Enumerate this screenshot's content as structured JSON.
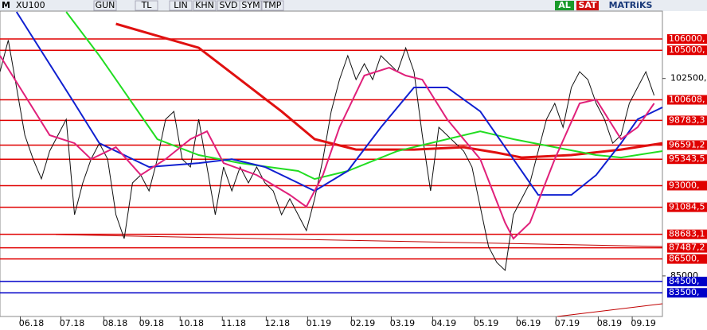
{
  "toolbar": {
    "logo": "M",
    "symbol": "XU100",
    "buttons": [
      "GUN",
      "TL",
      "LIN",
      "KHN",
      "SVD",
      "SYM",
      "TMP"
    ],
    "buy": "AL",
    "sell": "SAT",
    "brand": "MATRiKS"
  },
  "chart_data": {
    "type": "line",
    "xlim": [
      0,
      80
    ],
    "xticks": [
      {
        "value": 3.8,
        "label": "06.18"
      },
      {
        "value": 8.7,
        "label": "07.18"
      },
      {
        "value": 13.9,
        "label": "08.18"
      },
      {
        "value": 18.3,
        "label": "09.18"
      },
      {
        "value": 23.1,
        "label": "10.18"
      },
      {
        "value": 28.2,
        "label": "11.18"
      },
      {
        "value": 33.5,
        "label": "12.18"
      },
      {
        "value": 38.5,
        "label": "01.19"
      },
      {
        "value": 43.8,
        "label": "02.19"
      },
      {
        "value": 48.6,
        "label": "03.19"
      },
      {
        "value": 53.6,
        "label": "04.19"
      },
      {
        "value": 58.7,
        "label": "05.19"
      },
      {
        "value": 63.8,
        "label": "06.19"
      },
      {
        "value": 68.5,
        "label": "07.19"
      },
      {
        "value": 73.6,
        "label": "08.19"
      },
      {
        "value": 77.7,
        "label": "09.19"
      }
    ],
    "ylim": [
      81400,
      108470
    ],
    "yticks": [
      {
        "value": 102500,
        "label": "102500,"
      },
      {
        "value": 85000,
        "label": "85000,"
      }
    ],
    "levels": [
      {
        "value": 106000,
        "label": "106000,",
        "color": "#e00000"
      },
      {
        "value": 105000,
        "label": "105000,",
        "color": "#e00000"
      },
      {
        "value": 100608,
        "label": "100608,",
        "color": "#e00000"
      },
      {
        "value": 98783.3,
        "label": "98783,3",
        "color": "#e00000"
      },
      {
        "value": 96591.2,
        "label": "96591,2",
        "color": "#e00000"
      },
      {
        "value": 95343.5,
        "label": "95343,5",
        "color": "#e00000"
      },
      {
        "value": 93000,
        "label": "93000,",
        "color": "#e00000"
      },
      {
        "value": 91084.5,
        "label": "91084,5",
        "color": "#e00000"
      },
      {
        "value": 88683.1,
        "label": "88683,1",
        "color": "#e00000"
      },
      {
        "value": 87487.2,
        "label": "87487,2",
        "color": "#e00000"
      },
      {
        "value": 86500,
        "label": "86500,",
        "color": "#e00000"
      },
      {
        "value": 84500,
        "label": "84500,",
        "color": "#0000c8"
      },
      {
        "value": 83500,
        "label": "83500,",
        "color": "#0000c8"
      }
    ],
    "price": {
      "color": "#111111",
      "x": [
        0,
        1,
        2,
        3,
        4,
        5,
        6,
        7,
        8,
        9,
        10,
        11,
        12,
        13,
        14,
        15,
        16,
        17,
        18,
        19,
        20,
        21,
        22,
        23,
        24,
        25,
        26,
        27,
        28,
        29,
        30,
        31,
        32,
        33,
        34,
        35,
        36,
        37,
        38,
        39,
        40,
        41,
        42,
        43,
        44,
        45,
        46,
        47,
        48,
        49,
        50,
        51,
        52,
        53,
        54,
        55,
        56,
        57,
        58,
        59,
        60,
        61,
        62,
        63,
        64,
        65,
        66,
        67,
        68,
        69,
        70,
        71,
        72,
        73,
        74,
        75,
        76,
        77,
        78,
        79
      ],
      "values": [
        103100,
        105900,
        101700,
        97470,
        95350,
        93600,
        96060,
        97470,
        98880,
        90420,
        93240,
        95350,
        96760,
        95350,
        90420,
        88300,
        93240,
        93940,
        92530,
        95350,
        98880,
        99580,
        95350,
        94650,
        98880,
        94650,
        90420,
        94650,
        92530,
        94650,
        93240,
        94650,
        93240,
        92530,
        90420,
        91830,
        90420,
        89010,
        91830,
        95350,
        99580,
        102400,
        104520,
        102400,
        103810,
        102400,
        104520,
        103810,
        103100,
        105220,
        103100,
        97470,
        92530,
        98170,
        97470,
        96760,
        96060,
        94650,
        91130,
        87600,
        86190,
        85490,
        90420,
        91830,
        93240,
        96060,
        98880,
        100290,
        98170,
        101700,
        103100,
        102400,
        100290,
        98880,
        96760,
        97470,
        100290,
        101700,
        103100,
        100990
      ]
    },
    "series": [
      {
        "color": "#e01010",
        "width": 3,
        "x": [
          14,
          19,
          24,
          29,
          34,
          38,
          43,
          50,
          56,
          60,
          63,
          69,
          75,
          80
        ],
        "values": [
          107340,
          106280,
          105220,
          102400,
          99580,
          97120,
          96200,
          96200,
          96410,
          95920,
          95490,
          95710,
          96200,
          96760
        ]
      },
      {
        "color": "#22dd22",
        "width": 2,
        "x": [
          8,
          12,
          16,
          19,
          24,
          29,
          36,
          38,
          42,
          48,
          54,
          58,
          62,
          67,
          72,
          75,
          80
        ],
        "values": [
          108400,
          104520,
          100290,
          97120,
          95710,
          95000,
          94300,
          93590,
          94300,
          96060,
          97120,
          97820,
          97120,
          96410,
          95710,
          95490,
          96060
        ]
      },
      {
        "color": "#1020d0",
        "width": 2,
        "x": [
          2,
          9,
          12,
          18,
          24,
          28,
          32,
          36,
          38,
          42,
          46,
          50,
          54,
          58,
          62,
          65,
          69,
          72,
          75,
          77,
          80
        ],
        "values": [
          108400,
          100290,
          96760,
          94650,
          95000,
          95350,
          94650,
          93240,
          92530,
          94300,
          98170,
          101700,
          101700,
          99580,
          95350,
          92180,
          92180,
          93940,
          96760,
          98880,
          99940
        ]
      },
      {
        "color": "#e0207a",
        "width": 2,
        "x": [
          0,
          3,
          6,
          9,
          11,
          14,
          17,
          20,
          23,
          25,
          27,
          31,
          35,
          37,
          39,
          41,
          44,
          47,
          49,
          51,
          54,
          58,
          61,
          62,
          64,
          67,
          70,
          72,
          75,
          77,
          79
        ],
        "values": [
          104520,
          101000,
          97470,
          96760,
          95350,
          96410,
          93940,
          95350,
          97120,
          97820,
          95000,
          93940,
          92180,
          91130,
          93940,
          98170,
          102760,
          103460,
          102760,
          102400,
          98880,
          95350,
          89710,
          88300,
          89710,
          95350,
          100290,
          100640,
          97120,
          98170,
          100290
        ]
      }
    ]
  }
}
